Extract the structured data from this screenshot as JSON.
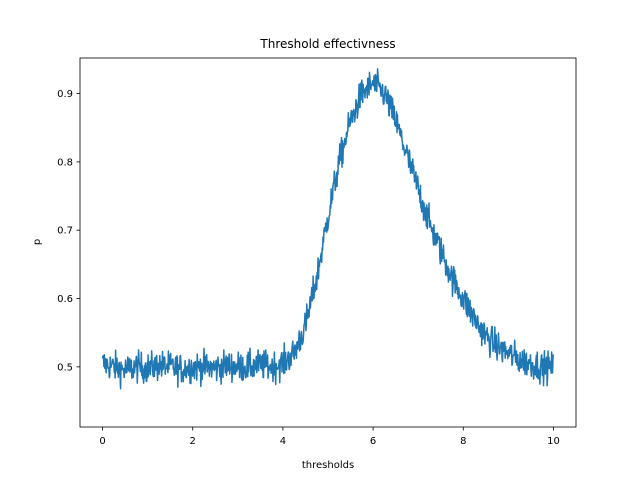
{
  "chart_data": {
    "type": "line",
    "title": "Threshold effectivness",
    "xlabel": "thresholds",
    "ylabel": "p",
    "xlim": [
      -0.5,
      10.5
    ],
    "ylim": [
      0.412,
      0.952
    ],
    "x_ticks": [
      0,
      2,
      4,
      6,
      8,
      10
    ],
    "y_ticks": [
      0.5,
      0.6,
      0.7,
      0.8,
      0.9
    ],
    "x_tick_labels": [
      "0",
      "2",
      "4",
      "6",
      "8",
      "10"
    ],
    "y_tick_labels": [
      "0.5",
      "0.6",
      "0.7",
      "0.8",
      "0.9"
    ],
    "grid": false,
    "series": [
      {
        "color": "#1f77b4",
        "x": [
          0.0,
          0.25,
          0.5,
          0.75,
          1.0,
          1.25,
          1.5,
          1.75,
          2.0,
          2.25,
          2.5,
          2.75,
          3.0,
          3.25,
          3.5,
          3.75,
          4.0,
          4.25,
          4.5,
          4.75,
          5.0,
          5.25,
          5.5,
          5.75,
          6.0,
          6.25,
          6.5,
          6.75,
          7.0,
          7.25,
          7.5,
          7.75,
          8.0,
          8.25,
          8.5,
          8.75,
          9.0,
          9.25,
          9.5,
          9.75,
          10.0
        ],
        "y": [
          0.505,
          0.5,
          0.495,
          0.5,
          0.498,
          0.502,
          0.5,
          0.497,
          0.5,
          0.5,
          0.498,
          0.502,
          0.5,
          0.5,
          0.503,
          0.5,
          0.505,
          0.52,
          0.56,
          0.63,
          0.72,
          0.8,
          0.86,
          0.9,
          0.915,
          0.9,
          0.86,
          0.81,
          0.76,
          0.71,
          0.67,
          0.63,
          0.6,
          0.57,
          0.545,
          0.53,
          0.52,
          0.51,
          0.505,
          0.5,
          0.5
        ]
      }
    ]
  }
}
